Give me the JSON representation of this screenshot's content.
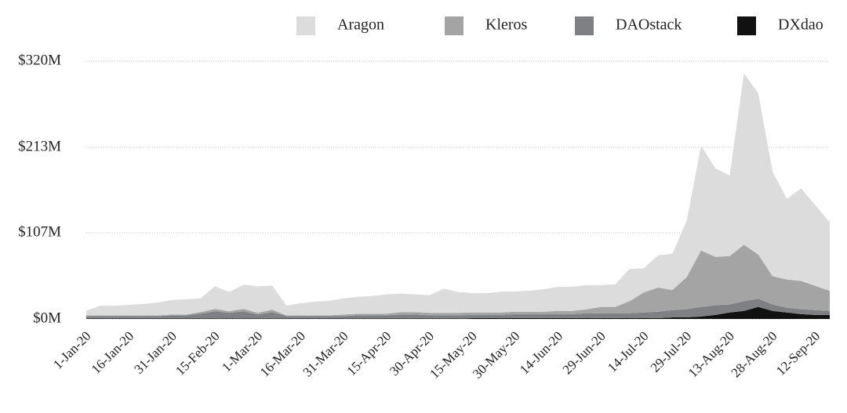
{
  "chart_data": {
    "type": "stacked-area",
    "x": [
      "2020-01-01",
      "2020-01-06",
      "2020-01-11",
      "2020-01-16",
      "2020-01-21",
      "2020-01-26",
      "2020-01-31",
      "2020-02-05",
      "2020-02-10",
      "2020-02-15",
      "2020-02-20",
      "2020-02-25",
      "2020-03-01",
      "2020-03-06",
      "2020-03-11",
      "2020-03-16",
      "2020-03-21",
      "2020-03-26",
      "2020-03-31",
      "2020-04-05",
      "2020-04-10",
      "2020-04-15",
      "2020-04-20",
      "2020-04-25",
      "2020-04-30",
      "2020-05-05",
      "2020-05-10",
      "2020-05-15",
      "2020-05-20",
      "2020-05-25",
      "2020-05-30",
      "2020-06-04",
      "2020-06-09",
      "2020-06-14",
      "2020-06-19",
      "2020-06-24",
      "2020-06-29",
      "2020-07-04",
      "2020-07-09",
      "2020-07-14",
      "2020-07-19",
      "2020-07-24",
      "2020-07-29",
      "2020-08-03",
      "2020-08-08",
      "2020-08-13",
      "2020-08-18",
      "2020-08-23",
      "2020-08-28",
      "2020-09-02",
      "2020-09-07",
      "2020-09-12",
      "2020-09-17"
    ],
    "series": [
      {
        "name": "Aragon",
        "color": "#dcdcdc",
        "values": [
          6,
          12,
          12,
          13,
          14,
          16,
          18,
          19,
          17,
          28,
          24,
          30,
          33,
          30,
          12,
          15,
          17,
          18,
          20,
          21,
          22,
          24,
          23,
          22,
          22,
          30,
          26,
          24,
          24,
          26,
          25,
          26,
          28,
          30,
          30,
          30,
          27,
          28,
          40,
          30,
          40,
          45,
          70,
          130,
          110,
          100,
          213,
          200,
          130,
          100,
          115,
          100,
          85
        ]
      },
      {
        "name": "Kleros",
        "color": "#a4a4a4",
        "values": [
          1,
          1,
          1,
          1,
          1,
          1,
          1,
          1,
          2,
          3,
          2,
          3,
          2,
          3,
          1,
          1,
          1,
          1,
          2,
          2,
          2,
          2,
          3,
          3,
          3,
          3,
          3,
          3,
          3,
          3,
          3,
          3,
          3,
          4,
          4,
          5,
          8,
          8,
          15,
          25,
          30,
          25,
          40,
          70,
          60,
          60,
          70,
          55,
          35,
          35,
          35,
          30,
          25
        ]
      },
      {
        "name": "DAOstack",
        "color": "#7e8083",
        "values": [
          3,
          3,
          3,
          3,
          3,
          3,
          4,
          4,
          6,
          9,
          7,
          9,
          5,
          8,
          3,
          3,
          3,
          3,
          3,
          4,
          4,
          4,
          5,
          5,
          4,
          4,
          4,
          4,
          4,
          4,
          5,
          5,
          5,
          5,
          5,
          6,
          6,
          6,
          6,
          7,
          8,
          9,
          10,
          12,
          12,
          10,
          12,
          10,
          8,
          6,
          6,
          6,
          5
        ]
      },
      {
        "name": "DXdao",
        "color": "#111111",
        "values": [
          0.5,
          0.5,
          0.5,
          0.5,
          0.5,
          0.5,
          0.5,
          0.5,
          0.5,
          0.5,
          0.5,
          0.5,
          0.5,
          0.5,
          0.5,
          0.5,
          0.5,
          0.5,
          0.5,
          0.5,
          0.5,
          0.5,
          0.5,
          0.5,
          0.5,
          0.5,
          0.5,
          1,
          1,
          1,
          1,
          1,
          1,
          1,
          1,
          1,
          1,
          1,
          1,
          1,
          1,
          2,
          2,
          3,
          5,
          8,
          10,
          15,
          10,
          8,
          6,
          5,
          5
        ]
      }
    ],
    "xlim": [
      "2020-01-01",
      "2020-09-17"
    ],
    "xticks": [
      {
        "value": "2020-01-01",
        "label": "1-Jan-20"
      },
      {
        "value": "2020-01-16",
        "label": "16-Jan-20"
      },
      {
        "value": "2020-01-31",
        "label": "31-Jan-20"
      },
      {
        "value": "2020-02-15",
        "label": "15-Feb-20"
      },
      {
        "value": "2020-03-01",
        "label": "1-Mar-20"
      },
      {
        "value": "2020-03-16",
        "label": "16-Mar-20"
      },
      {
        "value": "2020-03-31",
        "label": "31-Mar-20"
      },
      {
        "value": "2020-04-15",
        "label": "15-Apr-20"
      },
      {
        "value": "2020-04-30",
        "label": "30-Apr-20"
      },
      {
        "value": "2020-05-15",
        "label": "15-May-20"
      },
      {
        "value": "2020-05-30",
        "label": "30-May-20"
      },
      {
        "value": "2020-06-14",
        "label": "14-Jun-20"
      },
      {
        "value": "2020-06-29",
        "label": "29-Jun-20"
      },
      {
        "value": "2020-07-14",
        "label": "14-Jul-20"
      },
      {
        "value": "2020-07-29",
        "label": "29-Jul-20"
      },
      {
        "value": "2020-08-13",
        "label": "13-Aug-20"
      },
      {
        "value": "2020-08-28",
        "label": "28-Aug-20"
      },
      {
        "value": "2020-09-12",
        "label": "12-Sep-20"
      }
    ],
    "ylim": [
      0,
      320
    ],
    "yticks": [
      {
        "value": 0,
        "label": "$0M"
      },
      {
        "value": 107,
        "label": "$107M"
      },
      {
        "value": 213,
        "label": "$213M"
      },
      {
        "value": 320,
        "label": "$320M"
      }
    ],
    "grid": true,
    "legend": "top-right"
  }
}
